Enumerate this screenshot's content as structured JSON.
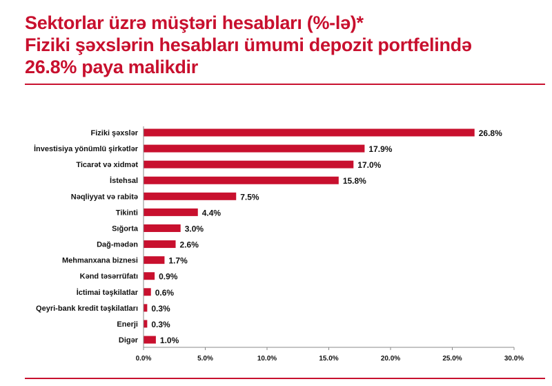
{
  "title_lines": [
    "Sektorlar üzrə müştəri hesabları (%-lə)*",
    "Fiziki şəxslərin hesabları ümumi depozit portfelində",
    "26.8% paya malikdir"
  ],
  "colors": {
    "accent": "#c8102e",
    "bar": "#c8102e"
  },
  "chart_data": {
    "type": "bar",
    "orientation": "horizontal",
    "categories": [
      "Fiziki şəxslər",
      "İnvestisiya yönümlü şirkətlər",
      "Ticarət və xidmət",
      "İstehsal",
      "Nəqliyyat və rabitə",
      "Tikinti",
      "Sığorta",
      "Dağ-mədən",
      "Mehmanxana biznesi",
      "Kənd təsərrüfatı",
      "İctimai təşkilatlar",
      "Qeyri-bank kredit təşkilatları",
      "Enerji",
      "Digər"
    ],
    "values": [
      26.8,
      17.9,
      17.0,
      15.8,
      7.5,
      4.4,
      3.0,
      2.6,
      1.7,
      0.9,
      0.6,
      0.3,
      0.3,
      1.0
    ],
    "data_labels": [
      "26.8%",
      "17.9%",
      "17.0%",
      "15.8%",
      "7.5%",
      "4.4%",
      "3.0%",
      "2.6%",
      "1.7%",
      "0.9%",
      "0.6%",
      "0.3%",
      "0.3%",
      "1.0%"
    ],
    "xlim": [
      0,
      30
    ],
    "x_ticks": [
      "0.0%",
      "5.0%",
      "10.0%",
      "15.0%",
      "20.0%",
      "25.0%",
      "30.0%"
    ],
    "grid": false,
    "legend": "none"
  }
}
